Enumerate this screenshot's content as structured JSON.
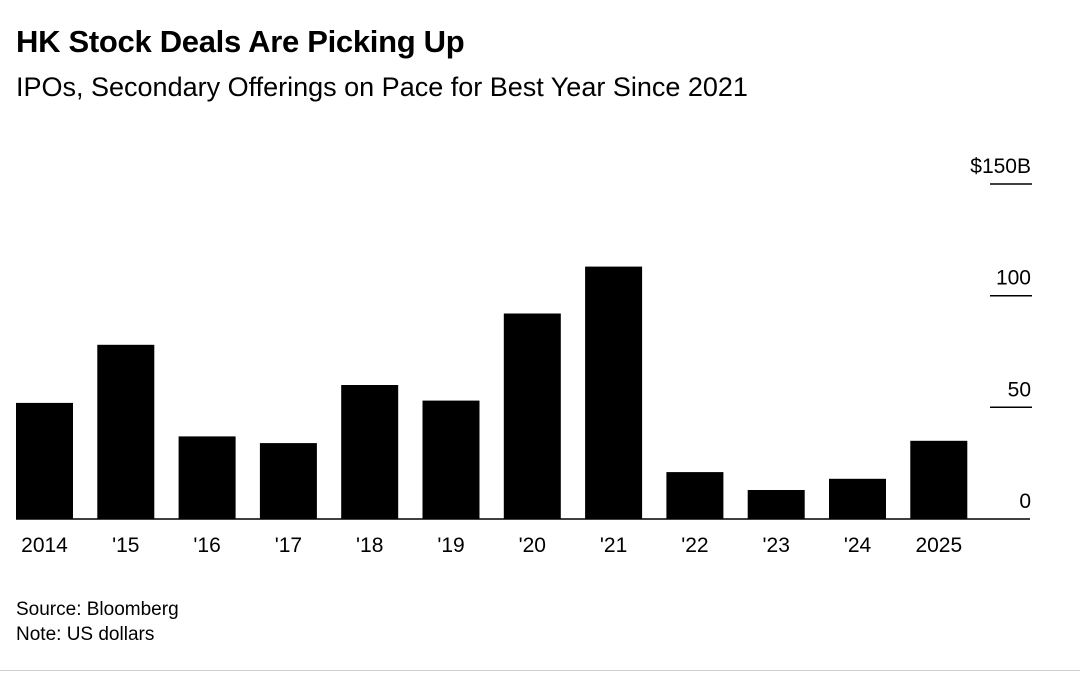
{
  "chart_data": {
    "type": "bar",
    "title": "HK Stock Deals Are Picking Up",
    "subtitle": "IPOs, Secondary Offerings on Pace for Best Year Since 2021",
    "categories": [
      "2014",
      "'15",
      "'16",
      "'17",
      "'18",
      "'19",
      "'20",
      "'21",
      "'22",
      "'23",
      "'24",
      "2025"
    ],
    "values": [
      52,
      78,
      37,
      34,
      60,
      53,
      92,
      113,
      21,
      13,
      18,
      35
    ],
    "ylim": [
      0,
      150
    ],
    "yticks": [
      {
        "value": 0,
        "label": "0"
      },
      {
        "value": 50,
        "label": "50"
      },
      {
        "value": 100,
        "label": "100"
      },
      {
        "value": 150,
        "label": "$150B"
      }
    ],
    "y_axis_side": "right",
    "bar_color": "#000000",
    "grid": false
  },
  "footer": {
    "source": "Source: Bloomberg",
    "note": "Note: US dollars"
  }
}
